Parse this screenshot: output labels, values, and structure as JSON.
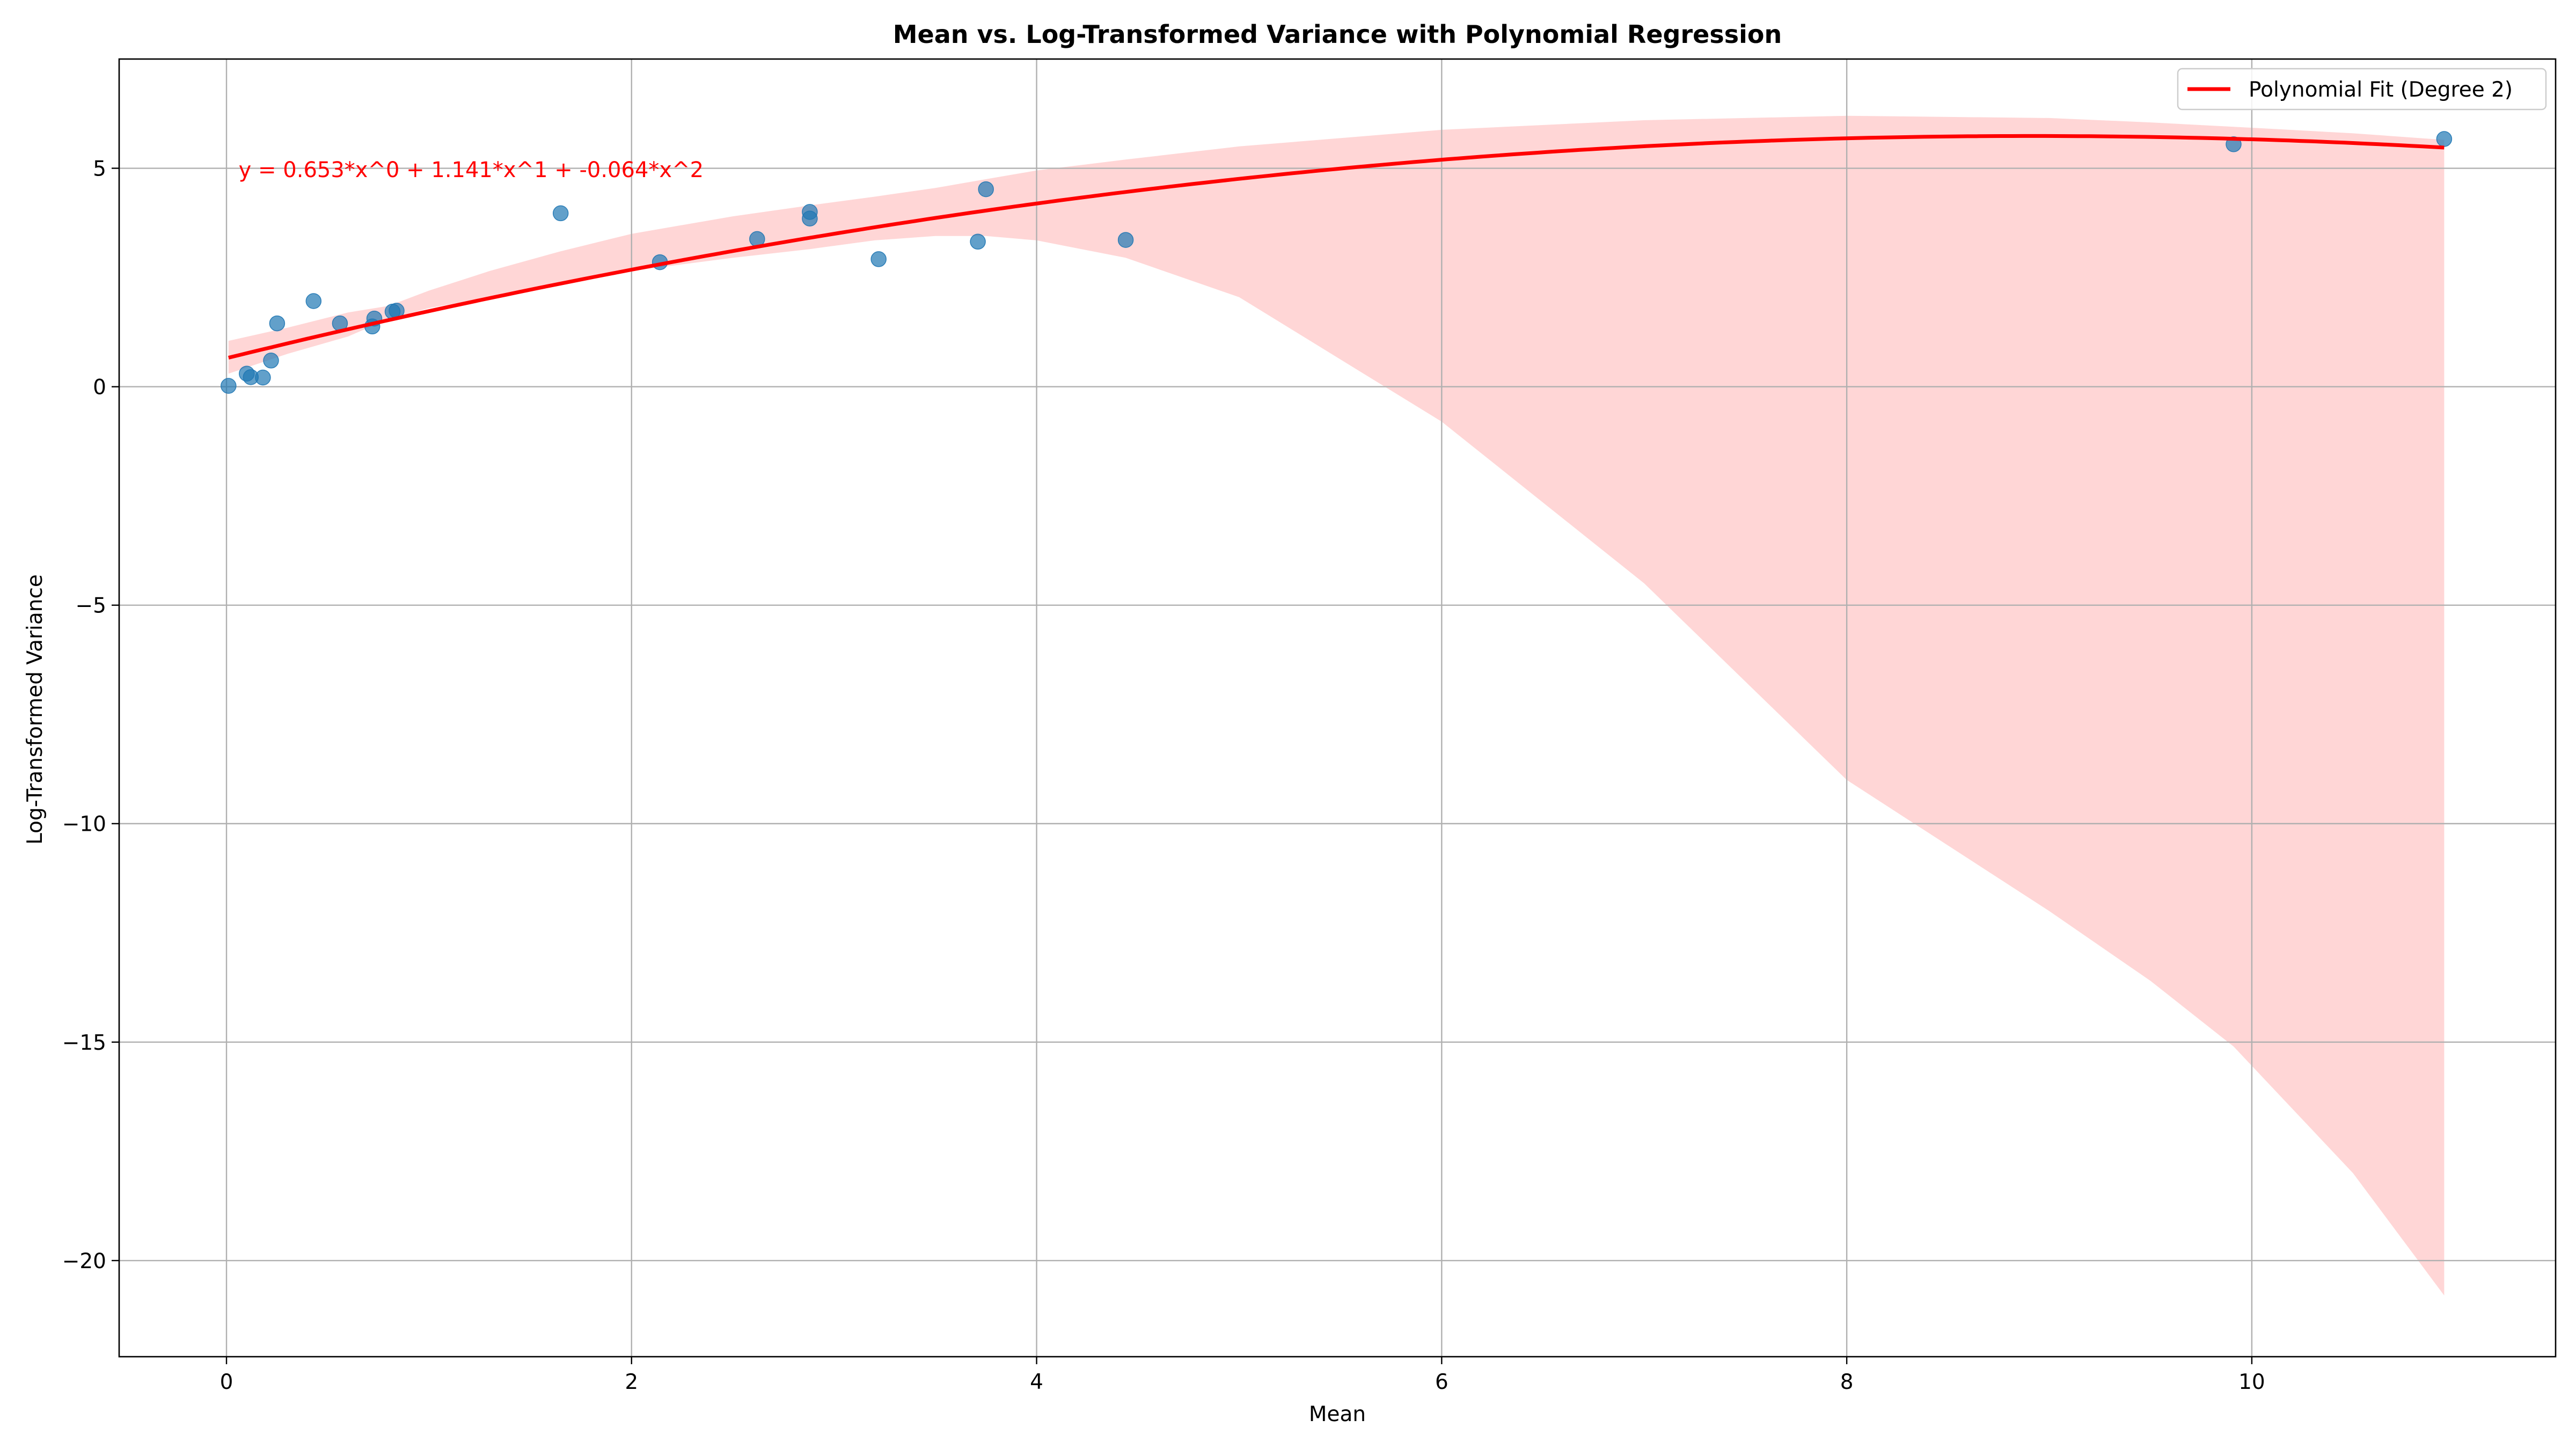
{
  "chart_data": {
    "type": "scatter",
    "title": "Mean vs. Log-Transformed Variance with Polynomial Regression",
    "xlabel": "Mean",
    "ylabel": "Log-Transformed Variance",
    "xlim": [
      -0.53,
      11.5
    ],
    "ylim": [
      -22.2,
      7.5
    ],
    "xticks": [
      0,
      2,
      4,
      6,
      8,
      10
    ],
    "yticks": [
      5,
      0,
      -5,
      -10,
      -15,
      -20
    ],
    "xtick_labels": [
      "0",
      "2",
      "4",
      "6",
      "8",
      "10"
    ],
    "ytick_labels": [
      "5",
      "0",
      "−5",
      "−10",
      "−15",
      "−20"
    ],
    "grid": true,
    "legend_position": "top-right",
    "points": {
      "color": "#1f77b4",
      "x": [
        0.01,
        0.1,
        0.12,
        0.18,
        0.22,
        0.25,
        0.43,
        0.56,
        0.72,
        0.73,
        0.82,
        0.84,
        1.65,
        2.14,
        2.62,
        2.88,
        2.88,
        3.22,
        3.71,
        3.75,
        4.44,
        9.91,
        10.95
      ],
      "y": [
        0.02,
        0.3,
        0.22,
        0.21,
        0.6,
        1.45,
        1.96,
        1.45,
        1.38,
        1.56,
        1.72,
        1.74,
        3.97,
        2.85,
        3.38,
        4.0,
        3.85,
        2.92,
        3.32,
        4.52,
        3.36,
        5.55,
        5.67
      ]
    },
    "series": [
      {
        "name": "Polynomial Fit (Degree 2)",
        "type": "line",
        "color": "#ff0000",
        "coefficients": [
          0.653,
          1.141,
          -0.064
        ],
        "x_range": [
          0.01,
          10.95
        ]
      }
    ],
    "confidence_band": {
      "color": "#ffcccc",
      "x": [
        0.01,
        0.3,
        0.6,
        0.8,
        1.0,
        1.3,
        1.65,
        2.0,
        2.5,
        2.88,
        3.2,
        3.5,
        3.75,
        4.0,
        4.44,
        5.0,
        6.0,
        7.0,
        8.0,
        9.0,
        9.5,
        9.91,
        10.5,
        10.95
      ],
      "upper": [
        1.05,
        1.35,
        1.7,
        1.85,
        2.2,
        2.65,
        3.1,
        3.5,
        3.9,
        4.15,
        4.35,
        4.55,
        4.75,
        4.95,
        5.2,
        5.5,
        5.88,
        6.1,
        6.2,
        6.15,
        6.05,
        5.95,
        5.8,
        5.65
      ],
      "lower": [
        0.3,
        0.75,
        1.15,
        1.55,
        1.8,
        2.05,
        2.4,
        2.65,
        2.95,
        3.15,
        3.35,
        3.45,
        3.45,
        3.35,
        2.95,
        2.05,
        -0.8,
        -4.5,
        -9.0,
        -12.0,
        -13.6,
        -15.1,
        -18.0,
        -20.8
      ]
    },
    "annotations": [
      {
        "text": "y = 0.653*x^0 + 1.141*x^1 + -0.064*x^2",
        "x": 0.06,
        "y": 4.8,
        "color": "#ff0000"
      }
    ]
  }
}
